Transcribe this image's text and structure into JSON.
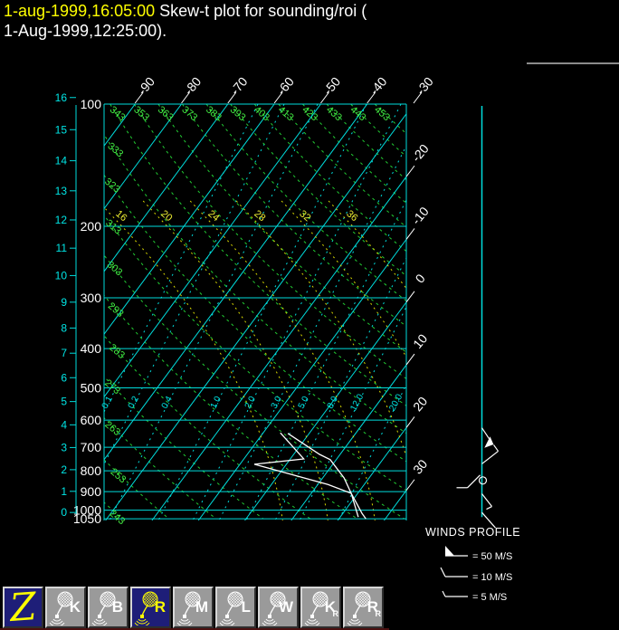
{
  "title": {
    "timestamp": "1-aug-1999,16:05:00",
    "heading_line1": " Skew-t plot for sounding/roi (",
    "heading_line2": "1-Aug-1999,12:25:00)."
  },
  "chart_data": {
    "type": "skew-t",
    "title": "Skew-t plot for sounding/roi",
    "pressure_axis": {
      "unit": "hPa",
      "ticks": [
        100,
        200,
        300,
        400,
        500,
        600,
        700,
        800,
        900,
        1000,
        1050
      ],
      "scale": "log"
    },
    "height_axis": {
      "unit": "km",
      "ticks": [
        0,
        1,
        2,
        3,
        4,
        5,
        6,
        7,
        8,
        9,
        10,
        11,
        12,
        13,
        14,
        15,
        16
      ]
    },
    "temperature_axis": {
      "unit": "C",
      "top_tick_labels": [
        -90,
        -80,
        -70,
        -60,
        -50,
        -40,
        -30
      ],
      "right_tick_labels": [
        -20,
        -10,
        0,
        10,
        20,
        30
      ],
      "isotherm_step": 10
    },
    "dry_adiabats_K": [
      243,
      253,
      263,
      273,
      283,
      293,
      303,
      313,
      323,
      333,
      343,
      353,
      363,
      373,
      383,
      393,
      403,
      413,
      423,
      433,
      443,
      453
    ],
    "moist_adiabats_C": [
      16,
      20,
      24,
      28,
      32,
      36
    ],
    "mixing_ratio_g_kg": [
      "0.1",
      "0.2",
      "0.4",
      "1.0",
      "2.0",
      "3.0",
      "5.0",
      "8.0",
      "12.0",
      "20.0"
    ],
    "temperature_trace_p_T": [
      [
        647,
        -4.6
      ],
      [
        729,
        5.6
      ],
      [
        751,
        8.7
      ],
      [
        833,
        14.6
      ],
      [
        909,
        18.6
      ],
      [
        1018,
        24.1
      ],
      [
        1050,
        25.8
      ]
    ],
    "dewpoint_trace_p_T": [
      [
        645,
        -6.3
      ],
      [
        748,
        2.9
      ],
      [
        771,
        -6.9
      ],
      [
        865,
        12.2
      ],
      [
        909,
        18.6
      ],
      [
        1040,
        23.9
      ]
    ],
    "wind_staff_pressure_range": [
      101,
      1040
    ],
    "wind_barbs": [
      {
        "pressure": 650,
        "type": "pennant-sw"
      },
      {
        "pressure": 742,
        "type": "full-barb-ne"
      },
      {
        "pressure": 845,
        "type": "calm-tail"
      },
      {
        "pressure": 940,
        "type": "full-barb-se"
      },
      {
        "pressure": 1045,
        "type": "plain-se"
      }
    ],
    "grid": true,
    "legend_position": "right-bottom"
  },
  "winds_profile": {
    "title": "WINDS PROFILE",
    "legend": [
      {
        "symbol": "pennant",
        "label": "= 50 M/S"
      },
      {
        "symbol": "full-barb",
        "label": "= 10 M/S"
      },
      {
        "symbol": "half-barb",
        "label": "= 5 M/S"
      }
    ]
  },
  "toolbar": {
    "buttons": [
      {
        "name": "z",
        "label": "Z",
        "style": "logo",
        "selected": true
      },
      {
        "name": "k",
        "label": "K",
        "selected": false
      },
      {
        "name": "b",
        "label": "B",
        "selected": false
      },
      {
        "name": "r",
        "label": "R",
        "selected": true
      },
      {
        "name": "m",
        "label": "M",
        "selected": false
      },
      {
        "name": "l",
        "label": "L",
        "selected": false
      },
      {
        "name": "w",
        "label": "W",
        "selected": false
      },
      {
        "name": "k-r",
        "label": "K",
        "sub": "R",
        "selected": false
      },
      {
        "name": "r-r",
        "label": "R",
        "sub": "R",
        "selected": false
      }
    ]
  },
  "colors": {
    "background": "#000000",
    "grid_cyan": "#00dcdc",
    "cyan_text": "#00e5e5",
    "dry_adiabat_green": "#22cc33",
    "green_text": "#44ee44",
    "moist_adiabat_yellow": "#d8d800",
    "yellow_text": "#eeee33",
    "trace_white": "#ffffff",
    "title_yellow": "#ffff00",
    "button_gray": "#9a9a9a",
    "selected_navy": "#1e1e78"
  }
}
